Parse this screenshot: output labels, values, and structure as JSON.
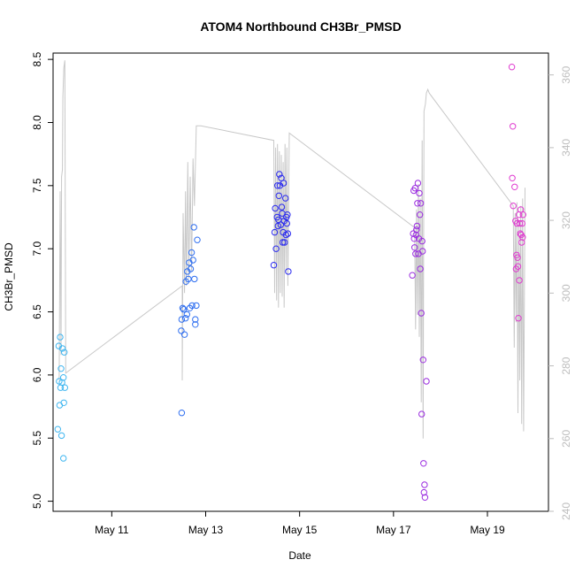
{
  "chart_data": {
    "type": "scatter",
    "title": "ATOM4 Northbound CH3Br_PMSD",
    "xlabel": "Date",
    "ylabel": "CH3Br_PMSD",
    "xlim": [
      9.75,
      20.3
    ],
    "ylim": [
      4.92,
      8.55
    ],
    "xticks": [
      11,
      13,
      15,
      17,
      19
    ],
    "xtick_labels": [
      "May 11",
      "May 13",
      "May 15",
      "May 17",
      "May 19"
    ],
    "yticks": [
      5.0,
      5.5,
      6.0,
      6.5,
      7.0,
      7.5,
      8.0,
      8.5
    ],
    "ytick_labels": [
      "5.0",
      "5.5",
      "6.0",
      "6.5",
      "7.0",
      "7.5",
      "8.0",
      "8.5"
    ],
    "y2lim": [
      240,
      366
    ],
    "y2ticks": [
      240,
      260,
      280,
      300,
      320,
      340,
      360
    ],
    "y2tick_labels": [
      "240",
      "260",
      "280",
      "300",
      "320",
      "340",
      "360"
    ],
    "points": [
      {
        "x": 9.87,
        "y": 6.23,
        "color": "#3fb6f0"
      },
      {
        "x": 9.9,
        "y": 6.3,
        "color": "#3fb6f0"
      },
      {
        "x": 9.95,
        "y": 6.21,
        "color": "#3fb6f0"
      },
      {
        "x": 9.99,
        "y": 6.18,
        "color": "#3fb6f0"
      },
      {
        "x": 9.92,
        "y": 6.05,
        "color": "#3fb6f0"
      },
      {
        "x": 9.88,
        "y": 5.95,
        "color": "#3fb6f0"
      },
      {
        "x": 9.97,
        "y": 5.98,
        "color": "#3fb6f0"
      },
      {
        "x": 9.91,
        "y": 5.9,
        "color": "#3fb6f0"
      },
      {
        "x": 10.0,
        "y": 5.9,
        "color": "#3fb6f0"
      },
      {
        "x": 9.94,
        "y": 5.94,
        "color": "#3fb6f0"
      },
      {
        "x": 9.98,
        "y": 5.78,
        "color": "#3fb6f0"
      },
      {
        "x": 9.89,
        "y": 5.76,
        "color": "#3fb6f0"
      },
      {
        "x": 9.85,
        "y": 5.57,
        "color": "#3fb6f0"
      },
      {
        "x": 9.93,
        "y": 5.52,
        "color": "#3fb6f0"
      },
      {
        "x": 9.97,
        "y": 5.34,
        "color": "#3fb6f0"
      },
      {
        "x": 12.49,
        "y": 5.7,
        "color": "#2e6ef0"
      },
      {
        "x": 12.48,
        "y": 6.35,
        "color": "#2e6ef0"
      },
      {
        "x": 12.49,
        "y": 6.44,
        "color": "#2e6ef0"
      },
      {
        "x": 12.51,
        "y": 6.53,
        "color": "#2e6ef0"
      },
      {
        "x": 12.53,
        "y": 6.52,
        "color": "#2e6ef0"
      },
      {
        "x": 12.55,
        "y": 6.32,
        "color": "#2e6ef0"
      },
      {
        "x": 12.57,
        "y": 6.45,
        "color": "#2e6ef0"
      },
      {
        "x": 12.58,
        "y": 6.74,
        "color": "#2e6ef0"
      },
      {
        "x": 12.6,
        "y": 6.48,
        "color": "#2e6ef0"
      },
      {
        "x": 12.61,
        "y": 6.82,
        "color": "#2e6ef0"
      },
      {
        "x": 12.63,
        "y": 6.76,
        "color": "#2e6ef0"
      },
      {
        "x": 12.65,
        "y": 6.89,
        "color": "#2e6ef0"
      },
      {
        "x": 12.66,
        "y": 6.53,
        "color": "#2e6ef0"
      },
      {
        "x": 12.68,
        "y": 6.84,
        "color": "#2e6ef0"
      },
      {
        "x": 12.7,
        "y": 6.97,
        "color": "#2e6ef0"
      },
      {
        "x": 12.71,
        "y": 6.55,
        "color": "#2e6ef0"
      },
      {
        "x": 12.73,
        "y": 6.91,
        "color": "#2e6ef0"
      },
      {
        "x": 12.75,
        "y": 7.17,
        "color": "#2e6ef0"
      },
      {
        "x": 12.76,
        "y": 6.76,
        "color": "#2e6ef0"
      },
      {
        "x": 12.78,
        "y": 6.44,
        "color": "#2e6ef0"
      },
      {
        "x": 12.8,
        "y": 6.55,
        "color": "#2e6ef0"
      },
      {
        "x": 12.82,
        "y": 7.07,
        "color": "#2e6ef0"
      },
      {
        "x": 12.78,
        "y": 6.4,
        "color": "#2e6ef0"
      },
      {
        "x": 14.45,
        "y": 6.87,
        "color": "#2a2af0"
      },
      {
        "x": 14.47,
        "y": 7.13,
        "color": "#2a2af0"
      },
      {
        "x": 14.48,
        "y": 7.32,
        "color": "#2a2af0"
      },
      {
        "x": 14.5,
        "y": 7.0,
        "color": "#2a2af0"
      },
      {
        "x": 14.52,
        "y": 7.25,
        "color": "#2a2af0"
      },
      {
        "x": 14.53,
        "y": 7.5,
        "color": "#2a2af0"
      },
      {
        "x": 14.55,
        "y": 7.23,
        "color": "#2a2af0"
      },
      {
        "x": 14.56,
        "y": 7.42,
        "color": "#2a2af0"
      },
      {
        "x": 14.57,
        "y": 7.59,
        "color": "#2a2af0"
      },
      {
        "x": 14.58,
        "y": 7.5,
        "color": "#2a2af0"
      },
      {
        "x": 14.6,
        "y": 7.19,
        "color": "#2a2af0"
      },
      {
        "x": 14.61,
        "y": 7.56,
        "color": "#2a2af0"
      },
      {
        "x": 14.62,
        "y": 7.33,
        "color": "#2a2af0"
      },
      {
        "x": 14.63,
        "y": 7.28,
        "color": "#2a2af0"
      },
      {
        "x": 14.64,
        "y": 7.05,
        "color": "#2a2af0"
      },
      {
        "x": 14.65,
        "y": 7.13,
        "color": "#2a2af0"
      },
      {
        "x": 14.66,
        "y": 7.52,
        "color": "#2a2af0"
      },
      {
        "x": 14.67,
        "y": 7.22,
        "color": "#2a2af0"
      },
      {
        "x": 14.68,
        "y": 7.05,
        "color": "#2a2af0"
      },
      {
        "x": 14.7,
        "y": 7.4,
        "color": "#2a2af0"
      },
      {
        "x": 14.71,
        "y": 7.11,
        "color": "#2a2af0"
      },
      {
        "x": 14.72,
        "y": 7.25,
        "color": "#2a2af0"
      },
      {
        "x": 14.73,
        "y": 7.2,
        "color": "#2a2af0"
      },
      {
        "x": 14.74,
        "y": 7.27,
        "color": "#2a2af0"
      },
      {
        "x": 14.75,
        "y": 7.12,
        "color": "#2a2af0"
      },
      {
        "x": 14.76,
        "y": 6.82,
        "color": "#2a2af0"
      },
      {
        "x": 14.54,
        "y": 7.18,
        "color": "#2a2af0"
      },
      {
        "x": 17.4,
        "y": 6.79,
        "color": "#9b2de0"
      },
      {
        "x": 17.42,
        "y": 7.12,
        "color": "#9b2de0"
      },
      {
        "x": 17.43,
        "y": 7.46,
        "color": "#9b2de0"
      },
      {
        "x": 17.44,
        "y": 7.08,
        "color": "#9b2de0"
      },
      {
        "x": 17.45,
        "y": 7.01,
        "color": "#9b2de0"
      },
      {
        "x": 17.46,
        "y": 7.48,
        "color": "#9b2de0"
      },
      {
        "x": 17.47,
        "y": 6.96,
        "color": "#9b2de0"
      },
      {
        "x": 17.48,
        "y": 7.11,
        "color": "#9b2de0"
      },
      {
        "x": 17.49,
        "y": 7.15,
        "color": "#9b2de0"
      },
      {
        "x": 17.5,
        "y": 7.18,
        "color": "#9b2de0"
      },
      {
        "x": 17.51,
        "y": 7.36,
        "color": "#9b2de0"
      },
      {
        "x": 17.52,
        "y": 7.52,
        "color": "#9b2de0"
      },
      {
        "x": 17.53,
        "y": 6.96,
        "color": "#9b2de0"
      },
      {
        "x": 17.54,
        "y": 7.08,
        "color": "#9b2de0"
      },
      {
        "x": 17.55,
        "y": 7.44,
        "color": "#9b2de0"
      },
      {
        "x": 17.56,
        "y": 7.27,
        "color": "#9b2de0"
      },
      {
        "x": 17.57,
        "y": 6.84,
        "color": "#9b2de0"
      },
      {
        "x": 17.58,
        "y": 7.36,
        "color": "#9b2de0"
      },
      {
        "x": 17.59,
        "y": 6.49,
        "color": "#9b2de0"
      },
      {
        "x": 17.6,
        "y": 5.69,
        "color": "#9b2de0"
      },
      {
        "x": 17.61,
        "y": 7.06,
        "color": "#9b2de0"
      },
      {
        "x": 17.62,
        "y": 6.98,
        "color": "#9b2de0"
      },
      {
        "x": 17.63,
        "y": 6.12,
        "color": "#9b2de0"
      },
      {
        "x": 17.64,
        "y": 5.3,
        "color": "#9b2de0"
      },
      {
        "x": 17.65,
        "y": 5.07,
        "color": "#9b2de0"
      },
      {
        "x": 17.66,
        "y": 5.13,
        "color": "#9b2de0"
      },
      {
        "x": 17.67,
        "y": 5.03,
        "color": "#9b2de0"
      },
      {
        "x": 17.7,
        "y": 5.95,
        "color": "#9b2de0"
      },
      {
        "x": 19.52,
        "y": 8.44,
        "color": "#e03ad0"
      },
      {
        "x": 19.54,
        "y": 7.97,
        "color": "#e03ad0"
      },
      {
        "x": 19.53,
        "y": 7.56,
        "color": "#e03ad0"
      },
      {
        "x": 19.55,
        "y": 7.34,
        "color": "#e03ad0"
      },
      {
        "x": 19.58,
        "y": 7.49,
        "color": "#e03ad0"
      },
      {
        "x": 19.6,
        "y": 7.22,
        "color": "#e03ad0"
      },
      {
        "x": 19.62,
        "y": 6.95,
        "color": "#e03ad0"
      },
      {
        "x": 19.63,
        "y": 7.2,
        "color": "#e03ad0"
      },
      {
        "x": 19.64,
        "y": 6.93,
        "color": "#e03ad0"
      },
      {
        "x": 19.65,
        "y": 6.86,
        "color": "#e03ad0"
      },
      {
        "x": 19.66,
        "y": 6.45,
        "color": "#e03ad0"
      },
      {
        "x": 19.67,
        "y": 7.27,
        "color": "#e03ad0"
      },
      {
        "x": 19.68,
        "y": 6.75,
        "color": "#e03ad0"
      },
      {
        "x": 19.69,
        "y": 7.2,
        "color": "#e03ad0"
      },
      {
        "x": 19.7,
        "y": 7.12,
        "color": "#e03ad0"
      },
      {
        "x": 19.71,
        "y": 7.31,
        "color": "#e03ad0"
      },
      {
        "x": 19.72,
        "y": 7.11,
        "color": "#e03ad0"
      },
      {
        "x": 19.73,
        "y": 7.05,
        "color": "#e03ad0"
      },
      {
        "x": 19.74,
        "y": 7.2,
        "color": "#e03ad0"
      },
      {
        "x": 19.75,
        "y": 7.09,
        "color": "#e03ad0"
      },
      {
        "x": 19.76,
        "y": 7.27,
        "color": "#e03ad0"
      },
      {
        "x": 19.61,
        "y": 6.84,
        "color": "#e03ad0"
      }
    ],
    "secondary_line": {
      "name": "secondary series (right axis)",
      "color": "#c8c8c8",
      "x": [
        9.88,
        9.9,
        9.92,
        9.93,
        9.95,
        9.96,
        9.98,
        10.0,
        10.02,
        12.5,
        12.5,
        12.52,
        12.55,
        12.57,
        12.59,
        12.62,
        12.64,
        12.67,
        12.7,
        12.73,
        12.76,
        12.8,
        12.9,
        14.45,
        14.47,
        14.49,
        14.51,
        14.53,
        14.55,
        14.57,
        14.59,
        14.61,
        14.63,
        14.65,
        14.67,
        14.69,
        14.71,
        14.73,
        14.75,
        14.78,
        17.45,
        17.47,
        17.49,
        17.51,
        17.53,
        17.55,
        17.57,
        17.59,
        17.61,
        17.63,
        17.65,
        17.68,
        17.7,
        17.73,
        17.76,
        19.55,
        19.57,
        19.59,
        19.61,
        19.63,
        19.65,
        19.67,
        19.69,
        19.71,
        19.73,
        19.75,
        19.77,
        19.8
      ],
      "y": [
        276,
        328,
        283,
        332,
        334,
        354,
        362,
        364,
        278,
        302,
        276,
        322,
        300,
        328,
        302,
        336,
        304,
        332,
        306,
        337,
        324,
        346,
        346,
        342,
        300,
        340,
        298,
        341,
        296,
        339,
        300,
        338,
        299,
        336,
        296,
        341,
        306,
        340,
        302,
        344,
        318,
        290,
        323,
        294,
        330,
        288,
        326,
        270,
        342,
        260,
        350,
        352,
        355,
        356,
        355,
        324,
        285,
        322,
        292,
        325,
        267,
        320,
        276,
        324,
        264,
        326,
        262,
        329
      ]
    }
  }
}
